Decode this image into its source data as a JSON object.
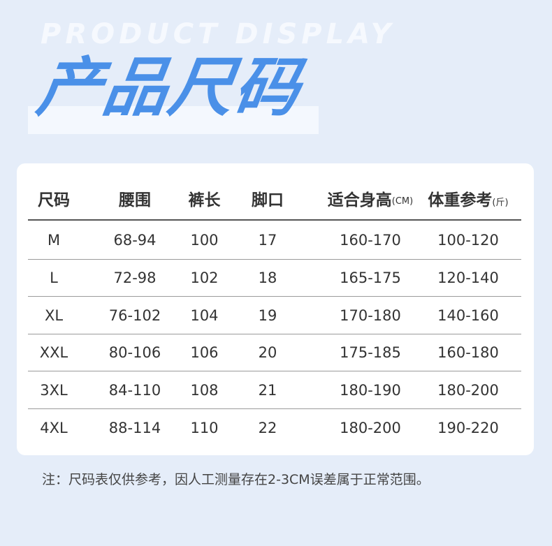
{
  "header": {
    "watermark": "PRODUCT DISPLAY",
    "title": "产品尺码"
  },
  "table": {
    "columns": [
      {
        "label": "尺码",
        "unit": ""
      },
      {
        "label": "腰围",
        "unit": ""
      },
      {
        "label": "裤长",
        "unit": ""
      },
      {
        "label": "脚口",
        "unit": ""
      },
      {
        "label": "适合身高",
        "unit": "(CM)"
      },
      {
        "label": "体重参考",
        "unit": "(斤)"
      }
    ],
    "rows": [
      [
        "M",
        "68-94",
        "100",
        "17",
        "160-170",
        "100-120"
      ],
      [
        "L",
        "72-98",
        "102",
        "18",
        "165-175",
        "120-140"
      ],
      [
        "XL",
        "76-102",
        "104",
        "19",
        "170-180",
        "140-160"
      ],
      [
        "XXL",
        "80-106",
        "106",
        "20",
        "175-185",
        "160-180"
      ],
      [
        "3XL",
        "84-110",
        "108",
        "21",
        "180-190",
        "180-200"
      ],
      [
        "4XL",
        "88-114",
        "110",
        "22",
        "180-200",
        "190-220"
      ]
    ]
  },
  "note": "注：尺码表仅供参考，因人工测量存在2-3CM误差属于正常范围。",
  "colors": {
    "background": "#e5edf9",
    "title": "#4a90e8"
  }
}
